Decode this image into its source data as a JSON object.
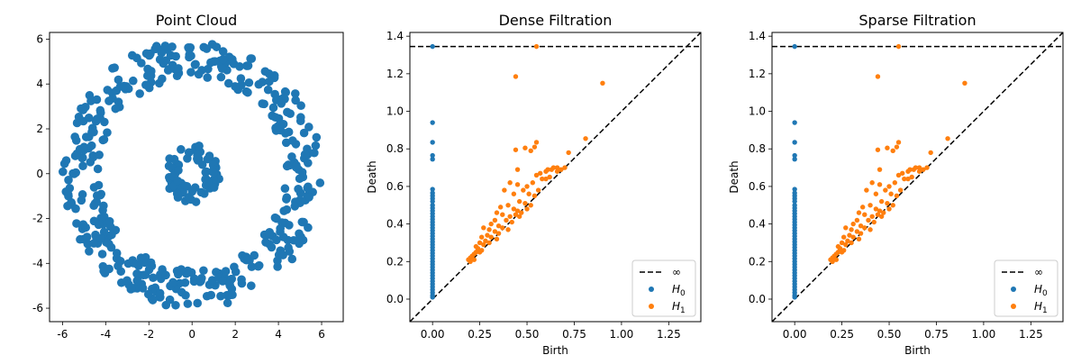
{
  "chart_data": [
    {
      "type": "scatter",
      "title": "Point Cloud",
      "xlabel": "",
      "ylabel": "",
      "xlim": [
        -6.6,
        7.0
      ],
      "ylim": [
        -6.6,
        6.3
      ],
      "xticks": [
        -6,
        -4,
        -2,
        0,
        2,
        4,
        6
      ],
      "yticks": [
        -6,
        -4,
        -2,
        0,
        2,
        4,
        6
      ],
      "grid": false,
      "color": "#1f77b4",
      "series": [
        {
          "marker": "circle",
          "shapes": [
            {
              "kind": "ring",
              "cx": 0,
              "cy": 0,
              "rmin": 4.3,
              "rmax": 6.0,
              "count": 420
            },
            {
              "kind": "ring",
              "cx": 0,
              "cy": 0,
              "rmin": 0.6,
              "rmax": 1.3,
              "count": 80
            }
          ]
        }
      ]
    },
    {
      "type": "scatter",
      "title": "Dense Filtration",
      "xlabel": "Birth",
      "ylabel": "Death",
      "xlim": [
        -0.12,
        1.42
      ],
      "ylim": [
        -0.12,
        1.42
      ],
      "xticks": [
        "0.00",
        "0.25",
        "0.50",
        "0.75",
        "1.00",
        "1.25"
      ],
      "yticks": [
        "0.0",
        "0.2",
        "0.4",
        "0.6",
        "0.8",
        "1.0",
        "1.2",
        "1.4"
      ],
      "infinity_y": 1.345,
      "legend_placement": "bottom-right",
      "legend": [
        {
          "label": "∞",
          "style": "dashed-line",
          "color": "#000000"
        },
        {
          "label": "H",
          "sub": "0",
          "style": "dot",
          "color": "#1f77b4"
        },
        {
          "label": "H",
          "sub": "1",
          "style": "dot",
          "color": "#ff7f0e"
        }
      ],
      "series": [
        {
          "name": "H0",
          "color": "#1f77b4",
          "points": [
            [
              0,
              1.345
            ],
            [
              0,
              0.94
            ],
            [
              0,
              0.835
            ],
            [
              0,
              0.765
            ],
            [
              0,
              0.745
            ],
            [
              0,
              0.585
            ],
            [
              0,
              0.565
            ],
            [
              0,
              0.55
            ],
            [
              0,
              0.535
            ],
            [
              0,
              0.52
            ],
            [
              0,
              0.5
            ],
            [
              0,
              0.485
            ],
            [
              0,
              0.47
            ],
            [
              0,
              0.455
            ],
            [
              0,
              0.44
            ],
            [
              0,
              0.425
            ],
            [
              0,
              0.41
            ],
            [
              0,
              0.395
            ],
            [
              0,
              0.38
            ],
            [
              0,
              0.365
            ],
            [
              0,
              0.35
            ],
            [
              0,
              0.335
            ],
            [
              0,
              0.32
            ],
            [
              0,
              0.305
            ],
            [
              0,
              0.29
            ],
            [
              0,
              0.275
            ],
            [
              0,
              0.26
            ],
            [
              0,
              0.245
            ],
            [
              0,
              0.23
            ],
            [
              0,
              0.215
            ],
            [
              0,
              0.2
            ],
            [
              0,
              0.185
            ],
            [
              0,
              0.17
            ],
            [
              0,
              0.155
            ],
            [
              0,
              0.14
            ],
            [
              0,
              0.125
            ],
            [
              0,
              0.11
            ],
            [
              0,
              0.095
            ],
            [
              0,
              0.08
            ],
            [
              0,
              0.065
            ],
            [
              0,
              0.05
            ],
            [
              0,
              0.035
            ],
            [
              0,
              0.02
            ],
            [
              0,
              0.01
            ]
          ]
        },
        {
          "name": "H1",
          "color": "#ff7f0e",
          "points": [
            [
              0.55,
              1.345
            ],
            [
              0.44,
              1.185
            ],
            [
              0.9,
              1.15
            ],
            [
              0.81,
              0.855
            ],
            [
              0.55,
              0.835
            ],
            [
              0.54,
              0.81
            ],
            [
              0.49,
              0.805
            ],
            [
              0.52,
              0.79
            ],
            [
              0.44,
              0.795
            ],
            [
              0.72,
              0.78
            ],
            [
              0.66,
              0.7
            ],
            [
              0.64,
              0.7
            ],
            [
              0.63,
              0.69
            ],
            [
              0.61,
              0.69
            ],
            [
              0.6,
              0.68
            ],
            [
              0.57,
              0.67
            ],
            [
              0.45,
              0.69
            ],
            [
              0.55,
              0.66
            ],
            [
              0.58,
              0.64
            ],
            [
              0.6,
              0.64
            ],
            [
              0.62,
              0.65
            ],
            [
              0.66,
              0.68
            ],
            [
              0.68,
              0.69
            ],
            [
              0.7,
              0.7
            ],
            [
              0.41,
              0.62
            ],
            [
              0.45,
              0.61
            ],
            [
              0.5,
              0.6
            ],
            [
              0.53,
              0.62
            ],
            [
              0.56,
              0.58
            ],
            [
              0.48,
              0.58
            ],
            [
              0.38,
              0.58
            ],
            [
              0.43,
              0.56
            ],
            [
              0.51,
              0.56
            ],
            [
              0.54,
              0.55
            ],
            [
              0.46,
              0.52
            ],
            [
              0.49,
              0.51
            ],
            [
              0.52,
              0.5
            ],
            [
              0.36,
              0.49
            ],
            [
              0.4,
              0.5
            ],
            [
              0.43,
              0.48
            ],
            [
              0.45,
              0.47
            ],
            [
              0.47,
              0.46
            ],
            [
              0.5,
              0.48
            ],
            [
              0.34,
              0.46
            ],
            [
              0.37,
              0.45
            ],
            [
              0.41,
              0.44
            ],
            [
              0.44,
              0.45
            ],
            [
              0.46,
              0.44
            ],
            [
              0.33,
              0.42
            ],
            [
              0.39,
              0.42
            ],
            [
              0.42,
              0.41
            ],
            [
              0.31,
              0.4
            ],
            [
              0.35,
              0.39
            ],
            [
              0.37,
              0.38
            ],
            [
              0.4,
              0.37
            ],
            [
              0.3,
              0.37
            ],
            [
              0.33,
              0.36
            ],
            [
              0.35,
              0.35
            ],
            [
              0.27,
              0.38
            ],
            [
              0.29,
              0.34
            ],
            [
              0.31,
              0.33
            ],
            [
              0.34,
              0.32
            ],
            [
              0.26,
              0.33
            ],
            [
              0.28,
              0.31
            ],
            [
              0.3,
              0.3
            ],
            [
              0.25,
              0.3
            ],
            [
              0.27,
              0.29
            ],
            [
              0.24,
              0.27
            ],
            [
              0.26,
              0.26
            ],
            [
              0.23,
              0.25
            ],
            [
              0.25,
              0.25
            ],
            [
              0.22,
              0.24
            ],
            [
              0.21,
              0.23
            ],
            [
              0.2,
              0.22
            ],
            [
              0.19,
              0.21
            ],
            [
              0.22,
              0.21
            ],
            [
              0.2,
              0.2
            ],
            [
              0.23,
              0.28
            ],
            [
              0.24,
              0.26
            ]
          ]
        }
      ]
    },
    {
      "type": "scatter",
      "title": "Sparse Filtration",
      "xlabel": "Birth",
      "ylabel": "Death",
      "xlim": [
        -0.12,
        1.42
      ],
      "ylim": [
        -0.12,
        1.42
      ],
      "xticks": [
        "0.00",
        "0.25",
        "0.50",
        "0.75",
        "1.00",
        "1.25"
      ],
      "yticks": [
        "0.0",
        "0.2",
        "0.4",
        "0.6",
        "0.8",
        "1.0",
        "1.2",
        "1.4"
      ],
      "infinity_y": 1.345,
      "legend_placement": "bottom-right",
      "legend": [
        {
          "label": "∞",
          "style": "dashed-line",
          "color": "#000000"
        },
        {
          "label": "H",
          "sub": "0",
          "style": "dot",
          "color": "#1f77b4"
        },
        {
          "label": "H",
          "sub": "1",
          "style": "dot",
          "color": "#ff7f0e"
        }
      ],
      "series": [
        {
          "name": "H0",
          "color": "#1f77b4",
          "points": [
            [
              0,
              1.345
            ],
            [
              0,
              0.94
            ],
            [
              0,
              0.835
            ],
            [
              0,
              0.765
            ],
            [
              0,
              0.745
            ],
            [
              0,
              0.585
            ],
            [
              0,
              0.565
            ],
            [
              0,
              0.55
            ],
            [
              0,
              0.535
            ],
            [
              0,
              0.52
            ],
            [
              0,
              0.5
            ],
            [
              0,
              0.485
            ],
            [
              0,
              0.47
            ],
            [
              0,
              0.455
            ],
            [
              0,
              0.44
            ],
            [
              0,
              0.425
            ],
            [
              0,
              0.41
            ],
            [
              0,
              0.395
            ],
            [
              0,
              0.38
            ],
            [
              0,
              0.365
            ],
            [
              0,
              0.35
            ],
            [
              0,
              0.335
            ],
            [
              0,
              0.32
            ],
            [
              0,
              0.305
            ],
            [
              0,
              0.29
            ],
            [
              0,
              0.275
            ],
            [
              0,
              0.26
            ],
            [
              0,
              0.245
            ],
            [
              0,
              0.23
            ],
            [
              0,
              0.215
            ],
            [
              0,
              0.2
            ],
            [
              0,
              0.185
            ],
            [
              0,
              0.17
            ],
            [
              0,
              0.155
            ],
            [
              0,
              0.14
            ],
            [
              0,
              0.125
            ],
            [
              0,
              0.11
            ],
            [
              0,
              0.095
            ],
            [
              0,
              0.08
            ],
            [
              0,
              0.065
            ],
            [
              0,
              0.05
            ],
            [
              0,
              0.035
            ],
            [
              0,
              0.02
            ],
            [
              0,
              0.01
            ]
          ]
        },
        {
          "name": "H1",
          "color": "#ff7f0e",
          "points": [
            [
              0.55,
              1.345
            ],
            [
              0.44,
              1.185
            ],
            [
              0.9,
              1.15
            ],
            [
              0.81,
              0.855
            ],
            [
              0.55,
              0.835
            ],
            [
              0.54,
              0.81
            ],
            [
              0.49,
              0.805
            ],
            [
              0.52,
              0.79
            ],
            [
              0.44,
              0.795
            ],
            [
              0.72,
              0.78
            ],
            [
              0.66,
              0.7
            ],
            [
              0.64,
              0.7
            ],
            [
              0.63,
              0.69
            ],
            [
              0.61,
              0.69
            ],
            [
              0.6,
              0.68
            ],
            [
              0.57,
              0.67
            ],
            [
              0.45,
              0.69
            ],
            [
              0.55,
              0.66
            ],
            [
              0.58,
              0.64
            ],
            [
              0.6,
              0.64
            ],
            [
              0.62,
              0.65
            ],
            [
              0.66,
              0.68
            ],
            [
              0.68,
              0.69
            ],
            [
              0.7,
              0.7
            ],
            [
              0.41,
              0.62
            ],
            [
              0.45,
              0.61
            ],
            [
              0.5,
              0.6
            ],
            [
              0.53,
              0.62
            ],
            [
              0.56,
              0.58
            ],
            [
              0.48,
              0.58
            ],
            [
              0.38,
              0.58
            ],
            [
              0.43,
              0.56
            ],
            [
              0.51,
              0.56
            ],
            [
              0.54,
              0.55
            ],
            [
              0.46,
              0.52
            ],
            [
              0.49,
              0.51
            ],
            [
              0.52,
              0.5
            ],
            [
              0.36,
              0.49
            ],
            [
              0.4,
              0.5
            ],
            [
              0.43,
              0.48
            ],
            [
              0.45,
              0.47
            ],
            [
              0.47,
              0.46
            ],
            [
              0.5,
              0.48
            ],
            [
              0.34,
              0.46
            ],
            [
              0.37,
              0.45
            ],
            [
              0.41,
              0.44
            ],
            [
              0.44,
              0.45
            ],
            [
              0.46,
              0.44
            ],
            [
              0.33,
              0.42
            ],
            [
              0.39,
              0.42
            ],
            [
              0.42,
              0.41
            ],
            [
              0.31,
              0.4
            ],
            [
              0.35,
              0.39
            ],
            [
              0.37,
              0.38
            ],
            [
              0.4,
              0.37
            ],
            [
              0.3,
              0.37
            ],
            [
              0.33,
              0.36
            ],
            [
              0.35,
              0.35
            ],
            [
              0.27,
              0.38
            ],
            [
              0.29,
              0.34
            ],
            [
              0.31,
              0.33
            ],
            [
              0.34,
              0.32
            ],
            [
              0.26,
              0.33
            ],
            [
              0.28,
              0.31
            ],
            [
              0.3,
              0.3
            ],
            [
              0.25,
              0.3
            ],
            [
              0.27,
              0.29
            ],
            [
              0.24,
              0.27
            ],
            [
              0.26,
              0.26
            ],
            [
              0.23,
              0.25
            ],
            [
              0.25,
              0.25
            ],
            [
              0.22,
              0.24
            ],
            [
              0.21,
              0.23
            ],
            [
              0.2,
              0.22
            ],
            [
              0.19,
              0.21
            ],
            [
              0.22,
              0.21
            ],
            [
              0.2,
              0.2
            ],
            [
              0.23,
              0.28
            ],
            [
              0.24,
              0.26
            ]
          ]
        }
      ]
    }
  ]
}
